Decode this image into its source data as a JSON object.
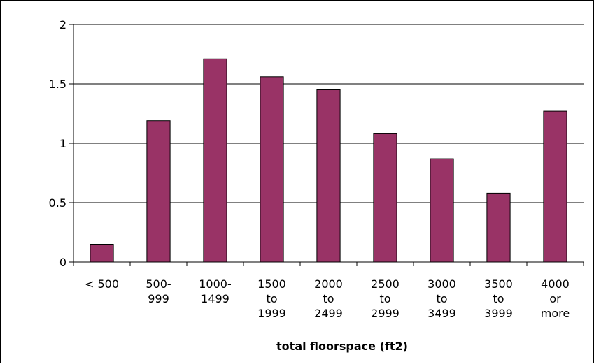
{
  "chart_data": {
    "type": "bar",
    "title": "",
    "xlabel": "total floorspace (ft2)",
    "ylabel": "",
    "ylim": [
      0,
      2
    ],
    "yticks": [
      "0",
      "0.5",
      "1",
      "1.5",
      "2"
    ],
    "grid": true,
    "legend": "none",
    "bar_color": "#993366",
    "categories": [
      [
        "< 500"
      ],
      [
        "500-",
        "999"
      ],
      [
        "1000-",
        "1499"
      ],
      [
        "1500",
        "to",
        "1999"
      ],
      [
        "2000",
        "to",
        "2499"
      ],
      [
        "2500",
        "to",
        "2999"
      ],
      [
        "3000",
        "to",
        "3499"
      ],
      [
        "3500",
        "to",
        "3999"
      ],
      [
        "4000",
        "or",
        "more"
      ]
    ],
    "values": [
      0.15,
      1.19,
      1.71,
      1.56,
      1.45,
      1.08,
      0.87,
      0.58,
      1.27
    ]
  }
}
